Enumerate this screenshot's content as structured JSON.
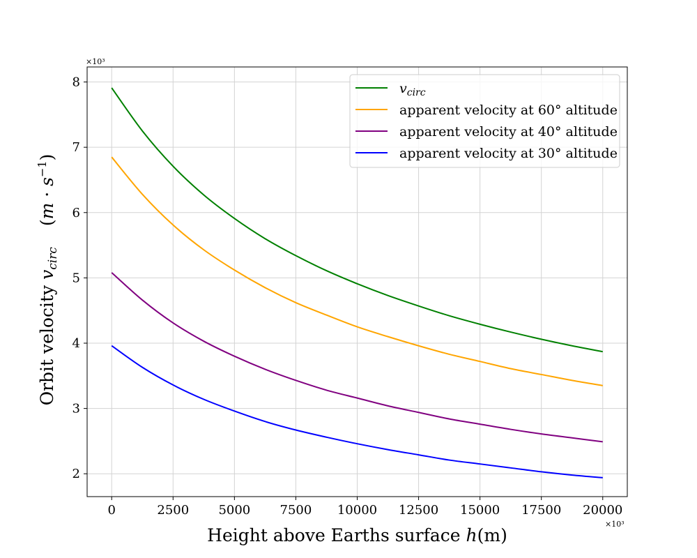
{
  "chart_data": {
    "type": "line",
    "xlabel_text": "Height above Earths surface ",
    "xlabel_math": "h",
    "xlabel_unit": "(m)",
    "ylabel_text": "Orbit velocity ",
    "ylabel_math_v": "v",
    "ylabel_math_sub": "circ",
    "ylabel_unit_open": "(",
    "ylabel_unit_m": "m",
    "ylabel_unit_dot": " · ",
    "ylabel_unit_s": "s",
    "ylabel_unit_exp": "−1",
    "ylabel_unit_close": ")",
    "x_multiplier": "×10³",
    "y_multiplier": "×10³",
    "xlim": [
      -1000,
      21000
    ],
    "ylim": [
      1.65,
      8.23
    ],
    "xticks": [
      0,
      2500,
      5000,
      7500,
      10000,
      12500,
      15000,
      17500,
      20000
    ],
    "xtick_labels": [
      "0",
      "2500",
      "5000",
      "7500",
      "10000",
      "12500",
      "15000",
      "17500",
      "20000"
    ],
    "yticks": [
      2,
      3,
      4,
      5,
      6,
      7,
      8
    ],
    "ytick_labels": [
      "2",
      "3",
      "4",
      "5",
      "6",
      "7",
      "8"
    ],
    "grid": true,
    "legend_position": "top-right",
    "x": [
      0,
      1250,
      2500,
      3750,
      5000,
      6250,
      7500,
      8750,
      10000,
      11250,
      12500,
      13750,
      15000,
      16250,
      17500,
      18750,
      20000
    ],
    "series": [
      {
        "name": "v_circ",
        "legend_math": "v",
        "legend_sub": "circ",
        "color": "#008000",
        "values": [
          7.91,
          7.25,
          6.71,
          6.27,
          5.91,
          5.6,
          5.34,
          5.11,
          4.91,
          4.73,
          4.57,
          4.42,
          4.29,
          4.17,
          4.06,
          3.96,
          3.87
        ]
      },
      {
        "name": "apparent velocity at 60° altitude",
        "color": "#ffa500",
        "values": [
          6.85,
          6.28,
          5.81,
          5.43,
          5.12,
          4.85,
          4.62,
          4.43,
          4.25,
          4.1,
          3.96,
          3.83,
          3.72,
          3.61,
          3.52,
          3.43,
          3.35
        ]
      },
      {
        "name": "apparent velocity at 40° altitude",
        "color": "#800080",
        "values": [
          5.08,
          4.66,
          4.31,
          4.03,
          3.8,
          3.6,
          3.43,
          3.28,
          3.16,
          3.04,
          2.94,
          2.84,
          2.76,
          2.68,
          2.61,
          2.55,
          2.49
        ]
      },
      {
        "name": "apparent velocity at 30° altitude",
        "color": "#0000ff",
        "values": [
          3.96,
          3.63,
          3.36,
          3.14,
          2.96,
          2.8,
          2.67,
          2.56,
          2.46,
          2.37,
          2.29,
          2.21,
          2.15,
          2.09,
          2.03,
          1.98,
          1.94
        ]
      }
    ]
  }
}
